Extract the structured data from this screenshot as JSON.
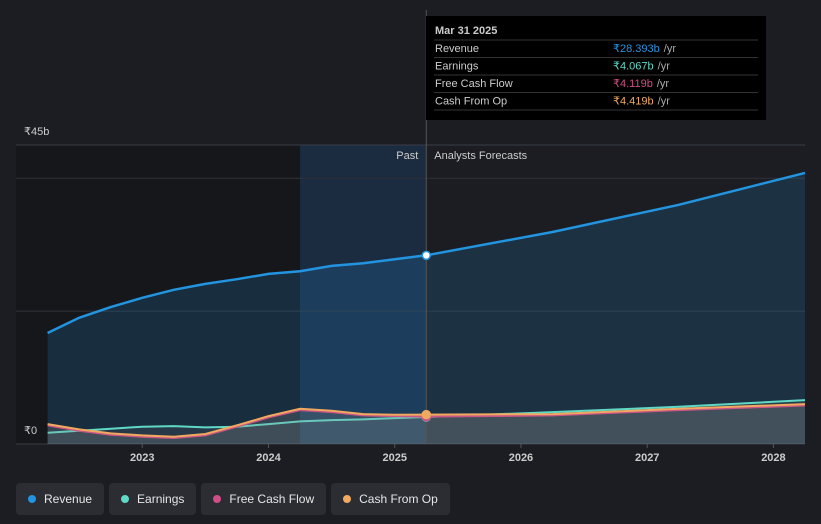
{
  "chart_data": {
    "type": "line",
    "x": [
      2022.25,
      2022.5,
      2022.75,
      2023,
      2023.25,
      2023.5,
      2023.75,
      2024,
      2024.25,
      2024.5,
      2024.75,
      2025,
      2025.25,
      2026.25,
      2027.25,
      2028.25
    ],
    "xlim": [
      2022,
      2028.25
    ],
    "xticks": [
      2023,
      2024,
      2025,
      2026,
      2027,
      2028
    ],
    "ylim": [
      0,
      45
    ],
    "yticks": [
      {
        "value": 0,
        "label": "₹0"
      },
      {
        "value": 45,
        "label": "₹45b"
      }
    ],
    "ygrid": [
      20,
      40
    ],
    "divider_x": 2025.25,
    "highlight_range": [
      2024.25,
      2025.25
    ],
    "past_label": "Past",
    "forecast_label": "Analysts Forecasts",
    "tooltip": {
      "title": "Mar 31 2025",
      "unit": "/yr",
      "index": 12
    },
    "series": [
      {
        "name": "Revenue",
        "color": "#2394df",
        "values": [
          16.7,
          19.0,
          20.6,
          22.0,
          23.2,
          24.1,
          24.8,
          25.6,
          26.0,
          26.8,
          27.2,
          27.8,
          28.393,
          31.9,
          36.0,
          40.8
        ],
        "value_labels": [
          null,
          null,
          null,
          null,
          null,
          null,
          null,
          null,
          null,
          null,
          null,
          null,
          "₹28.393b",
          null,
          null,
          null
        ]
      },
      {
        "name": "Earnings",
        "color": "#5fd9c6",
        "values": [
          1.7,
          2.0,
          2.3,
          2.6,
          2.7,
          2.5,
          2.6,
          3.0,
          3.4,
          3.6,
          3.7,
          3.9,
          4.067,
          4.8,
          5.6,
          6.6
        ],
        "value_labels": [
          null,
          null,
          null,
          null,
          null,
          null,
          null,
          null,
          null,
          null,
          null,
          null,
          "₹4.067b",
          null,
          null,
          null
        ]
      },
      {
        "name": "Free Cash Flow",
        "color": "#d14d85",
        "values": [
          2.8,
          2.0,
          1.4,
          1.1,
          0.9,
          1.3,
          2.6,
          4.0,
          5.1,
          4.8,
          4.3,
          4.2,
          4.119,
          4.3,
          5.1,
          5.8
        ],
        "value_labels": [
          null,
          null,
          null,
          null,
          null,
          null,
          null,
          null,
          null,
          null,
          null,
          null,
          "₹4.119b",
          null,
          null,
          null
        ]
      },
      {
        "name": "Cash From Op",
        "color": "#f0a95e",
        "values": [
          3.0,
          2.2,
          1.6,
          1.3,
          1.1,
          1.5,
          2.8,
          4.2,
          5.3,
          5.0,
          4.5,
          4.4,
          4.419,
          4.5,
          5.3,
          6.0
        ],
        "value_labels": [
          null,
          null,
          null,
          null,
          null,
          null,
          null,
          null,
          null,
          null,
          null,
          null,
          "₹4.419b",
          null,
          null,
          null
        ]
      }
    ]
  }
}
